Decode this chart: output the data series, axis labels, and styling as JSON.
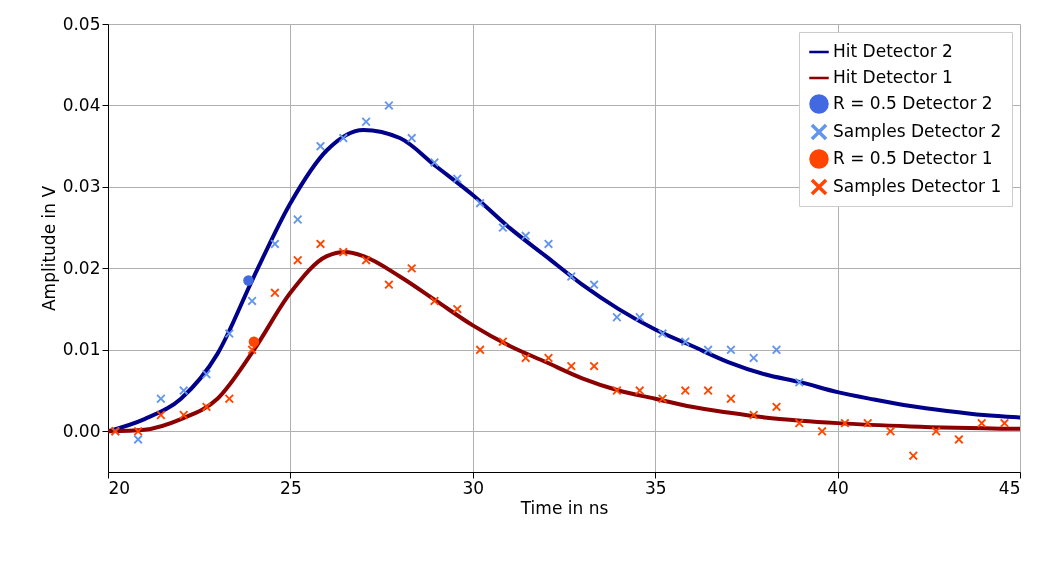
{
  "chart_data": {
    "type": "line",
    "xlabel": "Time in ns",
    "ylabel": "Amplitude in V",
    "xlim": [
      20,
      45
    ],
    "xticks": [
      20,
      25,
      30,
      35,
      40,
      45
    ],
    "ylim": [
      -0.005,
      0.05
    ],
    "yticks": [
      {
        "value": 0,
        "label": "0.00"
      },
      {
        "value": 0.01,
        "label": "0.01"
      },
      {
        "value": 0.02,
        "label": "0.02"
      },
      {
        "value": 0.03,
        "label": "0.03"
      },
      {
        "value": 0.04,
        "label": "0.04"
      },
      {
        "value": 0.05,
        "label": "0.05"
      }
    ],
    "grid": true,
    "legend": "top right",
    "series": [
      {
        "name": "Hit Detector 2",
        "color": "#00008b",
        "marker": "none",
        "x": [
          20,
          21,
          22,
          23,
          24,
          25,
          26,
          27,
          28,
          29,
          30,
          31,
          32,
          33,
          34,
          35,
          36,
          37,
          38,
          39,
          40,
          41,
          42,
          43,
          44,
          45
        ],
        "values": [
          0,
          0.0015,
          0.004,
          0.0095,
          0.019,
          0.028,
          0.0345,
          0.037,
          0.036,
          0.0325,
          0.029,
          0.025,
          0.0215,
          0.018,
          0.015,
          0.0125,
          0.0105,
          0.0085,
          0.007,
          0.006,
          0.0048,
          0.0039,
          0.0031,
          0.0025,
          0.002,
          0.0017
        ]
      },
      {
        "name": "Hit Detector 1",
        "color": "#8b0000",
        "marker": "none",
        "x": [
          20,
          21,
          22,
          23,
          24,
          25,
          26,
          26.5,
          27,
          28,
          29,
          30,
          31,
          32,
          33,
          34,
          35,
          36,
          37,
          38,
          39,
          40,
          42,
          45
        ],
        "values": [
          0,
          0.0002,
          0.0015,
          0.004,
          0.01,
          0.017,
          0.0215,
          0.022,
          0.0215,
          0.019,
          0.016,
          0.013,
          0.0105,
          0.0085,
          0.0065,
          0.005,
          0.004,
          0.003,
          0.0023,
          0.0017,
          0.0013,
          0.001,
          0.0006,
          0.0003
        ]
      },
      {
        "name": "R = 0.5 Detector 2",
        "type": "scatter",
        "color": "#4169e1",
        "marker": "circle",
        "x": [
          23.85
        ],
        "values": [
          0.0185
        ]
      },
      {
        "name": "Samples Detector 2",
        "type": "scatter",
        "color": "#6495ed",
        "marker": "cross",
        "x": [
          20.2,
          20.825,
          21.45,
          22.075,
          22.7,
          23.325,
          23.95,
          24.575,
          25.2,
          25.825,
          26.45,
          27.075,
          27.7,
          28.325,
          28.95,
          29.575,
          30.2,
          30.825,
          31.45,
          32.075,
          32.7,
          33.325,
          33.95,
          34.575,
          35.2,
          35.825,
          36.45,
          37.075,
          37.7,
          38.325,
          38.95
        ],
        "values": [
          0,
          -0.001,
          0.004,
          0.005,
          0.007,
          0.012,
          0.016,
          0.023,
          0.026,
          0.035,
          0.036,
          0.038,
          0.04,
          0.036,
          0.033,
          0.031,
          0.028,
          0.025,
          0.024,
          0.023,
          0.019,
          0.018,
          0.014,
          0.014,
          0.012,
          0.011,
          0.01,
          0.01,
          0.009,
          0.01,
          0.006
        ]
      },
      {
        "name": "R = 0.5 Detector 1",
        "type": "scatter",
        "color": "#ff4500",
        "marker": "circle",
        "x": [
          24.0
        ],
        "values": [
          0.011
        ]
      },
      {
        "name": "Samples Detector 1",
        "type": "scatter",
        "color": "#ff4500",
        "marker": "cross",
        "x": [
          20.2,
          20.825,
          21.45,
          22.075,
          22.7,
          23.325,
          23.95,
          24.575,
          25.2,
          25.825,
          26.45,
          27.075,
          27.7,
          28.325,
          28.95,
          29.575,
          30.2,
          30.825,
          31.45,
          32.075,
          32.7,
          33.325,
          33.95,
          34.575,
          35.2,
          35.825,
          36.45,
          37.075,
          37.7,
          38.325,
          38.95,
          39.575,
          40.2,
          40.825,
          41.45,
          42.075,
          42.7,
          43.325,
          43.95,
          44.575
        ],
        "values": [
          0,
          0,
          0.002,
          0.002,
          0.003,
          0.004,
          0.01,
          0.017,
          0.021,
          0.023,
          0.022,
          0.021,
          0.018,
          0.02,
          0.016,
          0.015,
          0.01,
          0.011,
          0.009,
          0.009,
          0.008,
          0.008,
          0.005,
          0.005,
          0.004,
          0.005,
          0.005,
          0.004,
          0.002,
          0.003,
          0.001,
          0,
          0.001,
          0.001,
          0,
          -0.003,
          0,
          -0.001,
          0.001,
          0.001
        ]
      }
    ]
  }
}
